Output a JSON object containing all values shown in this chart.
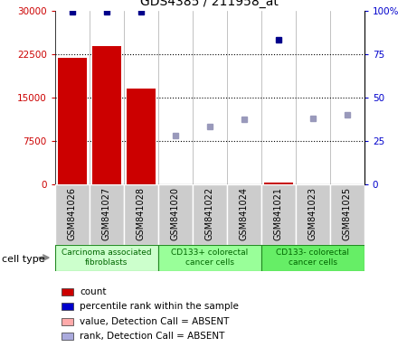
{
  "title": "GDS4385 / 211958_at",
  "samples": [
    "GSM841026",
    "GSM841027",
    "GSM841028",
    "GSM841020",
    "GSM841022",
    "GSM841024",
    "GSM841021",
    "GSM841023",
    "GSM841025"
  ],
  "count_values": [
    21800,
    23800,
    16500,
    0,
    0,
    0,
    250,
    0,
    0
  ],
  "percentile_rank": [
    99,
    99,
    99,
    null,
    null,
    null,
    83,
    null,
    null
  ],
  "value_absent": [
    null,
    null,
    null,
    null,
    null,
    null,
    null,
    null,
    null
  ],
  "rank_absent": [
    null,
    null,
    null,
    28,
    33,
    37,
    null,
    38,
    40
  ],
  "ylim_left": [
    0,
    30000
  ],
  "ylim_right": [
    0,
    100
  ],
  "yticks_left": [
    0,
    7500,
    15000,
    22500,
    30000
  ],
  "yticks_right": [
    0,
    25,
    50,
    75,
    100
  ],
  "yticklabels_left": [
    "0",
    "7500",
    "15000",
    "22500",
    "30000"
  ],
  "yticklabels_right": [
    "0",
    "25",
    "50",
    "75",
    "100%"
  ],
  "group_labels": [
    "Carcinoma associated\nfibroblasts",
    "CD133+ colorectal\ncancer cells",
    "CD133- colorectal\ncancer cells"
  ],
  "group_ranges": [
    [
      0,
      3
    ],
    [
      3,
      6
    ],
    [
      6,
      9
    ]
  ],
  "group_colors": [
    "#ccffcc",
    "#99ff99",
    "#66ee66"
  ],
  "legend_labels": [
    "count",
    "percentile rank within the sample",
    "value, Detection Call = ABSENT",
    "rank, Detection Call = ABSENT"
  ],
  "legend_colors": [
    "#cc0000",
    "#0000cc",
    "#ffaaaa",
    "#aaaadd"
  ],
  "bar_color": "#cc0000",
  "dark_blue": "#00008B",
  "light_purple": "#9999bb",
  "sample_box_color": "#cccccc",
  "bar_width": 0.85
}
